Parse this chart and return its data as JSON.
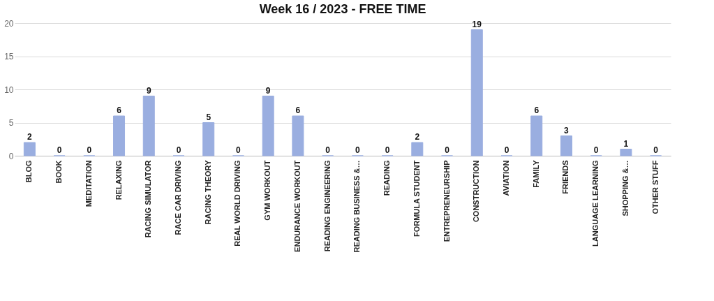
{
  "chart_data": {
    "type": "bar",
    "title": "Week 16 / 2023 - FREE TIME",
    "categories": [
      "BLOG",
      "BOOK",
      "MEDITATION",
      "RELAXING",
      "RACING SIMULATOR",
      "RACE CAR DRIVING",
      "RACING THEORY",
      "REAL WORLD DRIVING",
      "GYM WORKOUT",
      "ENDURANCE WORKOUT",
      "READING ENGINEERING",
      "READING BUSINESS &…",
      "READING",
      "FORMULA STUDENT",
      "ENTREPRENEURSHIP",
      "CONSTRUCTION",
      "AVIATION",
      "FAMILY",
      "FRIENDS",
      "LANGUAGE LEARNING",
      "SHOPPING &…",
      "OTHER STUFF"
    ],
    "values": [
      2,
      0,
      0,
      6,
      9,
      0,
      5,
      0,
      9,
      6,
      0,
      0,
      0,
      2,
      0,
      19,
      0,
      6,
      3,
      0,
      1,
      0
    ],
    "color": "#9aaee0",
    "ylim": [
      0,
      20
    ],
    "yticks": [
      0,
      5,
      10,
      15,
      20
    ],
    "grid": "y",
    "data_labels": true
  }
}
